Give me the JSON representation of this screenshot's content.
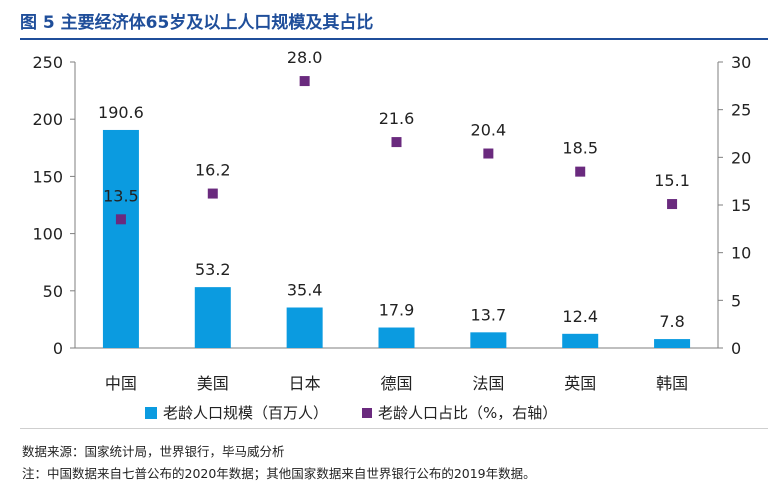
{
  "header": {
    "title": "图 5 主要经济体65岁及以上人口规模及其占比"
  },
  "chart_data": {
    "type": "bar+scatter",
    "categories": [
      "中国",
      "美国",
      "日本",
      "德国",
      "法国",
      "英国",
      "韩国"
    ],
    "series": [
      {
        "name": "老龄人口规模（百万人）",
        "type": "bar",
        "axis": "left",
        "values": [
          190.6,
          53.2,
          35.4,
          17.9,
          13.7,
          12.4,
          7.8
        ],
        "color": "#0b9be0"
      },
      {
        "name": "老龄人口占比（%，右轴）",
        "type": "scatter",
        "axis": "right",
        "values": [
          13.5,
          16.2,
          28.0,
          21.6,
          20.4,
          18.5,
          15.1
        ],
        "color": "#6a2a7e"
      }
    ],
    "y_left": {
      "min": 0,
      "max": 250,
      "ticks": [
        0,
        50,
        100,
        150,
        200,
        250
      ]
    },
    "y_right": {
      "min": 0,
      "max": 30,
      "ticks": [
        0,
        5,
        10,
        15,
        20,
        25,
        30
      ]
    },
    "legend_position": "bottom"
  },
  "footer": {
    "source": "数据来源：国家统计局，世界银行，毕马威分析",
    "note": "注：中国数据来自七普公布的2020年数据；其他国家数据来自世界银行公布的2019年数据。"
  }
}
